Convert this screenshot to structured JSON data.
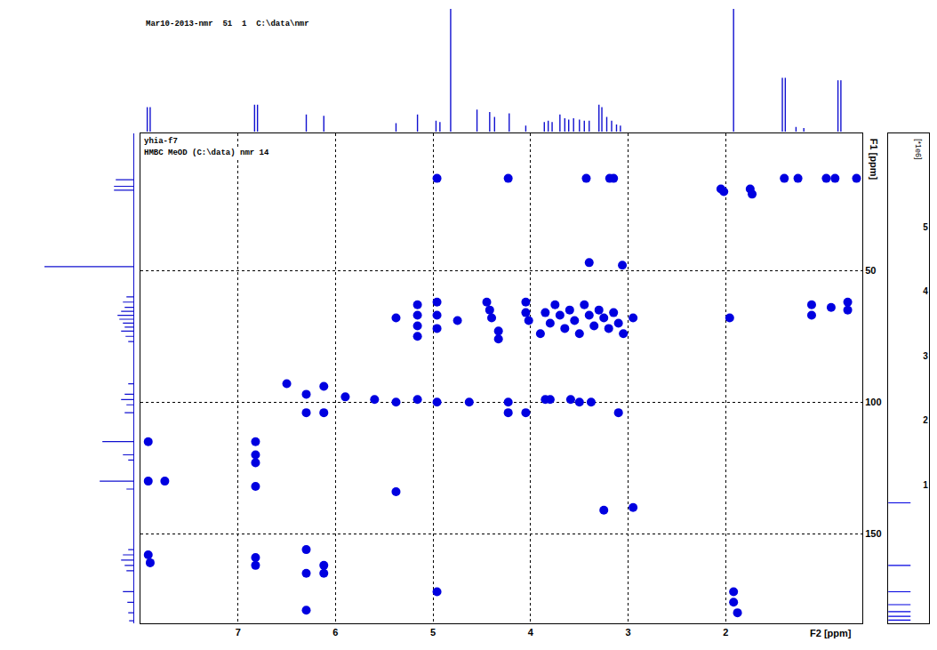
{
  "chart_data": [
    {
      "type": "scatter",
      "xlabel": "F2 [ppm]",
      "ylabel": "F1 [ppm]",
      "annotations": [
        "Mar10-2013-nmr  51  1  C:\\data\\nmr",
        "yhia-f7",
        "HMBC MeOD (C:\\data) nmr 14"
      ],
      "xlim": [
        8.0,
        0.6
      ],
      "ylim": [
        184,
        -2
      ],
      "xticks": [
        7,
        6,
        5,
        4,
        3,
        2
      ],
      "yticks": [
        50,
        100,
        150
      ],
      "grid": true,
      "color": "#0000e0",
      "marker": "circle",
      "x": [
        4.96,
        4.23,
        3.43,
        3.19,
        3.15,
        1.4,
        1.26,
        0.97,
        0.88,
        0.66,
        2.05,
        2.02,
        1.75,
        1.73,
        3.4,
        3.06,
        5.16,
        5.16,
        5.16,
        5.16,
        4.96,
        4.96,
        4.96,
        4.75,
        4.45,
        4.42,
        4.4,
        4.33,
        4.33,
        4.05,
        4.05,
        4.02,
        5.38,
        3.85,
        3.8,
        3.75,
        3.7,
        3.65,
        3.6,
        3.55,
        3.5,
        3.45,
        3.4,
        3.35,
        3.3,
        3.25,
        3.2,
        3.15,
        3.1,
        3.05,
        2.95,
        3.9,
        1.96,
        1.12,
        1.12,
        0.92,
        0.75,
        0.75,
        6.5,
        6.3,
        6.3,
        6.12,
        6.12,
        5.9,
        5.6,
        5.38,
        5.16,
        4.96,
        4.63,
        4.23,
        4.23,
        4.05,
        3.85,
        3.8,
        3.59,
        3.5,
        3.38,
        3.1,
        7.92,
        7.92,
        7.75,
        6.82,
        6.82,
        6.82,
        6.82,
        5.38,
        3.25,
        2.95,
        7.92,
        7.9,
        6.82,
        6.82,
        6.3,
        6.3,
        6.12,
        6.12,
        6.3,
        4.96,
        1.92,
        1.92,
        1.88
      ],
      "values": [
        15,
        15,
        15,
        15,
        15,
        15,
        15,
        15,
        15,
        15,
        19,
        20,
        19,
        21,
        47,
        48,
        63,
        67,
        71,
        75,
        62,
        67,
        72,
        69,
        62,
        65,
        68,
        73,
        76,
        62,
        66,
        69,
        68,
        66,
        70,
        63,
        67,
        72,
        65,
        69,
        74,
        63,
        67,
        71,
        65,
        68,
        72,
        66,
        70,
        74,
        68,
        74,
        68,
        63,
        67,
        64,
        62,
        65,
        93,
        97,
        104,
        94,
        104,
        98,
        99,
        100,
        99,
        100,
        100,
        100,
        104,
        104,
        99,
        99,
        99,
        100,
        100,
        104,
        115,
        130,
        130,
        115,
        120,
        123,
        132,
        134,
        141,
        140,
        158,
        161,
        159,
        162,
        156,
        165,
        162,
        165,
        179,
        172,
        172,
        176,
        180
      ]
    },
    {
      "type": "stick",
      "xlim": [
        8.0,
        0.6
      ],
      "ylim": [
        0,
        100
      ],
      "tick_labels": false,
      "color": "#1010d0",
      "x": [
        7.93,
        7.9,
        6.83,
        6.8,
        6.3,
        6.12,
        5.38,
        5.16,
        4.97,
        4.93,
        4.82,
        4.55,
        4.42,
        4.37,
        4.22,
        4.05,
        3.86,
        3.82,
        3.78,
        3.7,
        3.65,
        3.61,
        3.56,
        3.5,
        3.45,
        3.4,
        3.3,
        3.27,
        3.22,
        3.17,
        3.12,
        3.08,
        1.92,
        1.42,
        1.39,
        1.28,
        1.2,
        0.85,
        0.82
      ],
      "values": [
        20,
        20,
        22,
        22,
        14,
        13,
        7,
        14,
        9,
        8,
        100,
        18,
        16,
        12,
        15,
        5,
        8,
        9,
        8,
        14,
        11,
        10,
        11,
        10,
        9,
        9,
        22,
        20,
        12,
        9,
        6,
        5,
        100,
        44,
        44,
        4,
        3,
        42,
        42
      ]
    },
    {
      "type": "stick",
      "orientation": "horizontal",
      "xlim": [
        100,
        0
      ],
      "ylim": [
        184,
        -2
      ],
      "tick_labels": false,
      "color": "#1010d0",
      "y": [
        15.5,
        18,
        19.5,
        48.5,
        60,
        62,
        64,
        65.5,
        67,
        68.5,
        70,
        71.5,
        73,
        75,
        77,
        93,
        97,
        99,
        101,
        104,
        115,
        120,
        122,
        130,
        133,
        156,
        158,
        160,
        162,
        164,
        172,
        176,
        180,
        183
      ],
      "values": [
        20,
        22,
        22,
        100,
        8,
        12,
        10,
        14,
        18,
        16,
        12,
        10,
        14,
        9,
        6,
        6,
        10,
        14,
        8,
        10,
        35,
        12,
        6,
        38,
        8,
        6,
        12,
        14,
        10,
        8,
        12,
        7,
        6,
        5
      ]
    },
    {
      "type": "levels",
      "annotations": [
        "[*1e6]"
      ],
      "ylim": [
        -1.15,
        6.45
      ],
      "yticks": [
        1,
        2,
        3,
        4,
        5
      ],
      "tick_labels": "y",
      "color": "#0000e0",
      "values": [
        0.72,
        -0.25,
        -0.66,
        -0.86,
        -0.97,
        -1.04,
        -1.1
      ]
    }
  ]
}
